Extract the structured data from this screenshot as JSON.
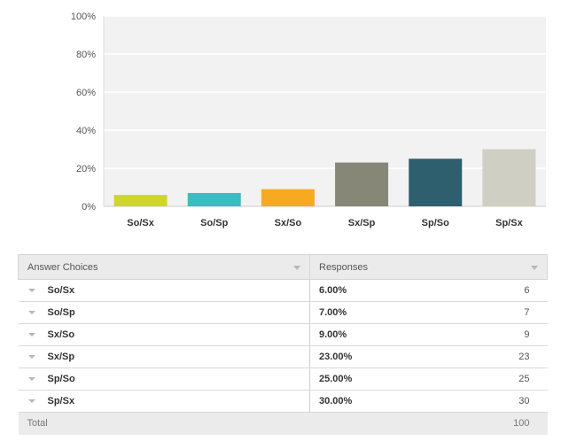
{
  "chart_data": {
    "type": "bar",
    "categories": [
      "So/Sx",
      "So/Sp",
      "Sx/So",
      "Sx/Sp",
      "Sp/So",
      "Sp/Sx"
    ],
    "values": [
      6,
      7,
      9,
      23,
      25,
      30
    ],
    "colors": [
      "#cfd62a",
      "#35bfc0",
      "#f7aa1f",
      "#878778",
      "#2d5f6e",
      "#d0cfc3"
    ],
    "ylim": [
      0,
      100
    ],
    "yticks": [
      "0%",
      "20%",
      "40%",
      "60%",
      "80%",
      "100%"
    ],
    "title": "",
    "xlabel": "",
    "ylabel": "",
    "grid": true
  },
  "table": {
    "header": {
      "choice": "Answer Choices",
      "responses": "Responses"
    },
    "rows": [
      {
        "choice": "So/Sx",
        "percent": "6.00%",
        "count": "6"
      },
      {
        "choice": "So/Sp",
        "percent": "7.00%",
        "count": "7"
      },
      {
        "choice": "Sx/So",
        "percent": "9.00%",
        "count": "9"
      },
      {
        "choice": "Sx/Sp",
        "percent": "23.00%",
        "count": "23"
      },
      {
        "choice": "Sp/So",
        "percent": "25.00%",
        "count": "25"
      },
      {
        "choice": "Sp/Sx",
        "percent": "30.00%",
        "count": "30"
      }
    ],
    "total_label": "Total",
    "total_value": "100"
  }
}
